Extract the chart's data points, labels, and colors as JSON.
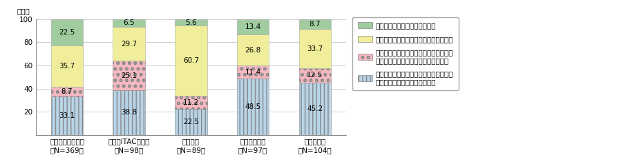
{
  "categories": [
    "日本（一般）企業\n（N=369）",
    "日本（ITAC）企業\n（N=98）",
    "米国企業\n（N=89）",
    "イギリス企業\n（N=97）",
    "ドイツ企業\n（N=104）"
  ],
  "series": [
    {
      "label": "新規事業や新たなビジネスモデルの創出\n（自社の産業・業種の範囲内）",
      "values": [
        33.1,
        38.8,
        22.5,
        48.5,
        45.2
      ],
      "color": "#b8d4e8",
      "hatch": "|||"
    },
    {
      "label": "新規事業や新たなビジネスモデルの創出\n（他産業・分野・レイヤーへの参入）",
      "values": [
        8.7,
        25.1,
        11.2,
        11.4,
        12.5
      ],
      "color": "#f5b8c0",
      "hatch": "oo"
    },
    {
      "label": "既存事業やビジネスモデルの拡大や強化",
      "values": [
        35.7,
        29.7,
        60.7,
        26.8,
        33.7
      ],
      "color": "#f0ee9a",
      "hatch": ""
    },
    {
      "label": "その他・特に方向は変わらない",
      "values": [
        22.5,
        6.5,
        5.6,
        13.4,
        8.7
      ],
      "color": "#a0cca0",
      "hatch": ""
    }
  ],
  "ylim": [
    0,
    100
  ],
  "yticks": [
    0,
    20,
    40,
    60,
    80,
    100
  ],
  "ylabel": "（％）",
  "background_color": "#ffffff",
  "grid_color": "#bbbbbb",
  "bar_width": 0.52,
  "legend_fontsize": 7.5,
  "tick_fontsize": 7.5,
  "label_fontsize": 7.5
}
